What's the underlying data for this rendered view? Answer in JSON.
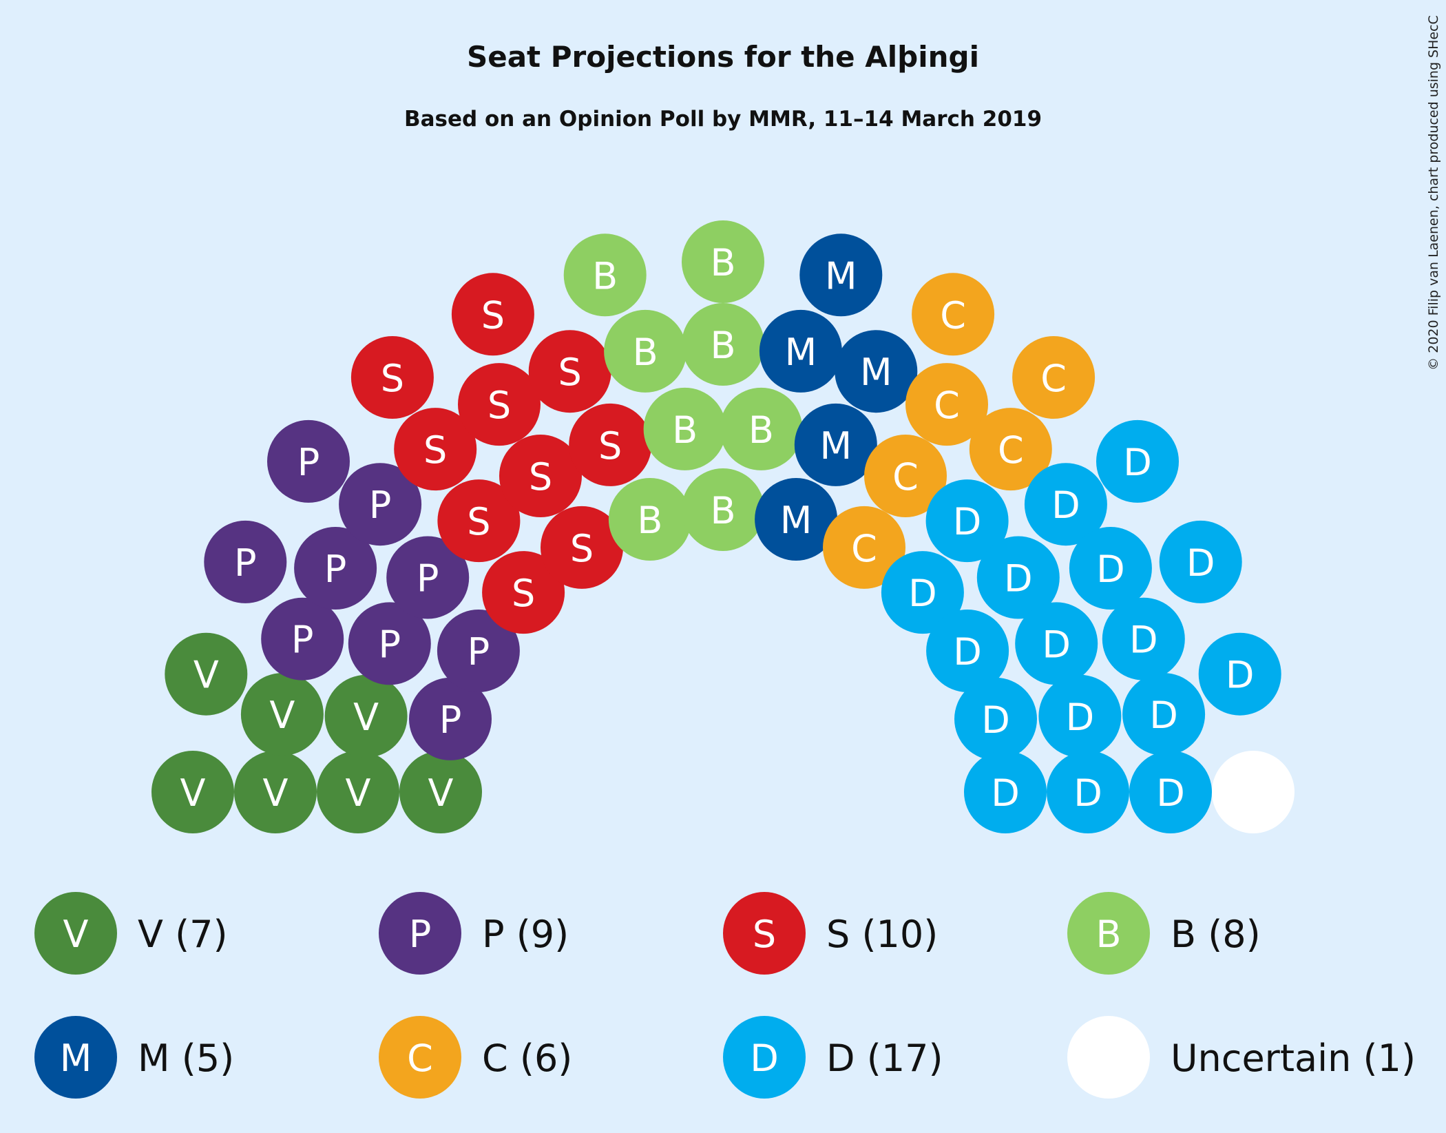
{
  "chart_data": {
    "type": "parliament",
    "title": "Seat Projections for the Alþingi",
    "subtitle": "Based on an Opinion Poll by MMR, 11–14 March 2019",
    "copyright": "© 2020 Filip van Laenen, chart produced using SHecC",
    "total_seats": 63,
    "series": [
      {
        "name": "V",
        "label": "V (7)",
        "seats": 7,
        "color": "#4a8b3c",
        "seat_letter": "V"
      },
      {
        "name": "P",
        "label": "P (9)",
        "seats": 9,
        "color": "#563382",
        "seat_letter": "P"
      },
      {
        "name": "S",
        "label": "S (10)",
        "seats": 10,
        "color": "#d71a21",
        "seat_letter": "S"
      },
      {
        "name": "B",
        "label": "B (8)",
        "seats": 8,
        "color": "#8ecf62",
        "seat_letter": "B"
      },
      {
        "name": "M",
        "label": "M (5)",
        "seats": 5,
        "color": "#00509b",
        "seat_letter": "M"
      },
      {
        "name": "C",
        "label": "C (6)",
        "seats": 6,
        "color": "#f3a51e",
        "seat_letter": "C"
      },
      {
        "name": "D",
        "label": "D (17)",
        "seats": 17,
        "color": "#00adee",
        "seat_letter": "D"
      },
      {
        "name": "Uncertain",
        "label": "Uncertain (1)",
        "seats": 1,
        "color": "#ffffff",
        "seat_letter": ""
      }
    ]
  }
}
